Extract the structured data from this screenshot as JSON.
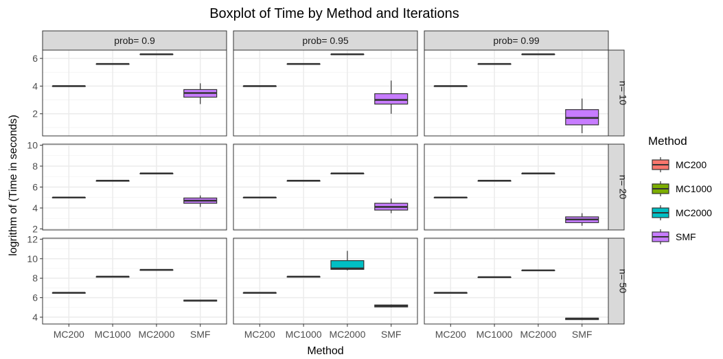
{
  "chart_data": {
    "type": "boxplot",
    "title": "Boxplot of Time by Method and Iterations",
    "xlabel": "Method",
    "ylabel": "logrithm of (Time in seconds)",
    "categories": [
      "MC200",
      "MC1000",
      "MC2000",
      "SMF"
    ],
    "facet_cols": [
      "prob= 0.9",
      "prob= 0.95",
      "prob= 0.99"
    ],
    "facet_rows": [
      "n= 10",
      "n= 20",
      "n= 50"
    ],
    "legend": {
      "title": "Method",
      "position": "right",
      "items": [
        {
          "label": "MC200",
          "color": "#F8766D"
        },
        {
          "label": "MC1000",
          "color": "#7CAE00"
        },
        {
          "label": "MC2000",
          "color": "#00BFC4"
        },
        {
          "label": "SMF",
          "color": "#C77CFF"
        }
      ]
    },
    "grid": true,
    "row_ylim": [
      [
        0.4,
        6.6
      ],
      [
        1.9,
        10.1
      ],
      [
        3.3,
        12.1
      ]
    ],
    "row_yticks": [
      [
        2,
        4,
        6
      ],
      [
        2,
        4,
        6,
        8,
        10
      ],
      [
        4,
        6,
        8,
        10,
        12
      ]
    ],
    "panels": [
      {
        "row": 0,
        "col": 0,
        "boxes": [
          {
            "method": "MC200",
            "min": 4.0,
            "q1": 4.0,
            "median": 4.0,
            "q3": 4.0,
            "max": 4.0
          },
          {
            "method": "MC1000",
            "min": 5.6,
            "q1": 5.6,
            "median": 5.6,
            "q3": 5.6,
            "max": 5.6
          },
          {
            "method": "MC2000",
            "min": 6.3,
            "q1": 6.3,
            "median": 6.3,
            "q3": 6.3,
            "max": 6.3
          },
          {
            "method": "SMF",
            "min": 2.7,
            "q1": 3.2,
            "median": 3.5,
            "q3": 3.75,
            "max": 4.2
          }
        ]
      },
      {
        "row": 0,
        "col": 1,
        "boxes": [
          {
            "method": "MC200",
            "min": 4.0,
            "q1": 4.0,
            "median": 4.0,
            "q3": 4.0,
            "max": 4.0
          },
          {
            "method": "MC1000",
            "min": 5.6,
            "q1": 5.6,
            "median": 5.6,
            "q3": 5.6,
            "max": 5.6
          },
          {
            "method": "MC2000",
            "min": 6.3,
            "q1": 6.3,
            "median": 6.3,
            "q3": 6.3,
            "max": 6.3
          },
          {
            "method": "SMF",
            "min": 2.0,
            "q1": 2.7,
            "median": 3.0,
            "q3": 3.45,
            "max": 4.4
          }
        ]
      },
      {
        "row": 0,
        "col": 2,
        "boxes": [
          {
            "method": "MC200",
            "min": 4.0,
            "q1": 4.0,
            "median": 4.0,
            "q3": 4.0,
            "max": 4.0
          },
          {
            "method": "MC1000",
            "min": 5.6,
            "q1": 5.6,
            "median": 5.6,
            "q3": 5.6,
            "max": 5.6
          },
          {
            "method": "MC2000",
            "min": 6.3,
            "q1": 6.3,
            "median": 6.3,
            "q3": 6.3,
            "max": 6.3
          },
          {
            "method": "SMF",
            "min": 0.6,
            "q1": 1.2,
            "median": 1.7,
            "q3": 2.3,
            "max": 3.1
          }
        ]
      },
      {
        "row": 1,
        "col": 0,
        "boxes": [
          {
            "method": "MC200",
            "min": 5.0,
            "q1": 5.0,
            "median": 5.0,
            "q3": 5.0,
            "max": 5.0
          },
          {
            "method": "MC1000",
            "min": 6.6,
            "q1": 6.6,
            "median": 6.6,
            "q3": 6.6,
            "max": 6.6
          },
          {
            "method": "MC2000",
            "min": 7.3,
            "q1": 7.3,
            "median": 7.3,
            "q3": 7.3,
            "max": 7.3
          },
          {
            "method": "SMF",
            "min": 4.1,
            "q1": 4.45,
            "median": 4.7,
            "q3": 4.95,
            "max": 5.2
          }
        ]
      },
      {
        "row": 1,
        "col": 1,
        "boxes": [
          {
            "method": "MC200",
            "min": 5.0,
            "q1": 5.0,
            "median": 5.0,
            "q3": 5.0,
            "max": 5.0
          },
          {
            "method": "MC1000",
            "min": 6.6,
            "q1": 6.6,
            "median": 6.6,
            "q3": 6.6,
            "max": 6.6
          },
          {
            "method": "MC2000",
            "min": 7.3,
            "q1": 7.3,
            "median": 7.3,
            "q3": 7.3,
            "max": 7.3
          },
          {
            "method": "SMF",
            "min": 3.5,
            "q1": 3.8,
            "median": 4.1,
            "q3": 4.45,
            "max": 4.9
          }
        ]
      },
      {
        "row": 1,
        "col": 2,
        "boxes": [
          {
            "method": "MC200",
            "min": 5.0,
            "q1": 5.0,
            "median": 5.0,
            "q3": 5.0,
            "max": 5.0
          },
          {
            "method": "MC1000",
            "min": 6.6,
            "q1": 6.6,
            "median": 6.6,
            "q3": 6.6,
            "max": 6.6
          },
          {
            "method": "MC2000",
            "min": 7.3,
            "q1": 7.3,
            "median": 7.3,
            "q3": 7.3,
            "max": 7.3
          },
          {
            "method": "SMF",
            "min": 2.3,
            "q1": 2.6,
            "median": 2.9,
            "q3": 3.15,
            "max": 3.5
          }
        ]
      },
      {
        "row": 2,
        "col": 0,
        "boxes": [
          {
            "method": "MC200",
            "min": 6.5,
            "q1": 6.5,
            "median": 6.5,
            "q3": 6.5,
            "max": 6.5
          },
          {
            "method": "MC1000",
            "min": 8.15,
            "q1": 8.15,
            "median": 8.15,
            "q3": 8.15,
            "max": 8.15
          },
          {
            "method": "MC2000",
            "min": 8.85,
            "q1": 8.85,
            "median": 8.85,
            "q3": 8.85,
            "max": 8.85
          },
          {
            "method": "SMF",
            "min": 5.6,
            "q1": 5.65,
            "median": 5.7,
            "q3": 5.75,
            "max": 5.8
          }
        ]
      },
      {
        "row": 2,
        "col": 1,
        "boxes": [
          {
            "method": "MC200",
            "min": 6.5,
            "q1": 6.5,
            "median": 6.5,
            "q3": 6.5,
            "max": 6.5
          },
          {
            "method": "MC1000",
            "min": 8.15,
            "q1": 8.15,
            "median": 8.15,
            "q3": 8.15,
            "max": 8.15
          },
          {
            "method": "MC2000",
            "min": 8.8,
            "q1": 8.9,
            "median": 9.0,
            "q3": 9.8,
            "max": 10.8
          },
          {
            "method": "SMF",
            "min": 5.0,
            "q1": 5.05,
            "median": 5.15,
            "q3": 5.25,
            "max": 5.3
          }
        ]
      },
      {
        "row": 2,
        "col": 2,
        "boxes": [
          {
            "method": "MC200",
            "min": 6.5,
            "q1": 6.5,
            "median": 6.5,
            "q3": 6.5,
            "max": 6.5
          },
          {
            "method": "MC1000",
            "min": 8.1,
            "q1": 8.1,
            "median": 8.1,
            "q3": 8.1,
            "max": 8.1
          },
          {
            "method": "MC2000",
            "min": 8.8,
            "q1": 8.8,
            "median": 8.8,
            "q3": 8.8,
            "max": 8.8
          },
          {
            "method": "SMF",
            "min": 3.7,
            "q1": 3.75,
            "median": 3.85,
            "q3": 3.9,
            "max": 3.95
          }
        ]
      }
    ]
  }
}
